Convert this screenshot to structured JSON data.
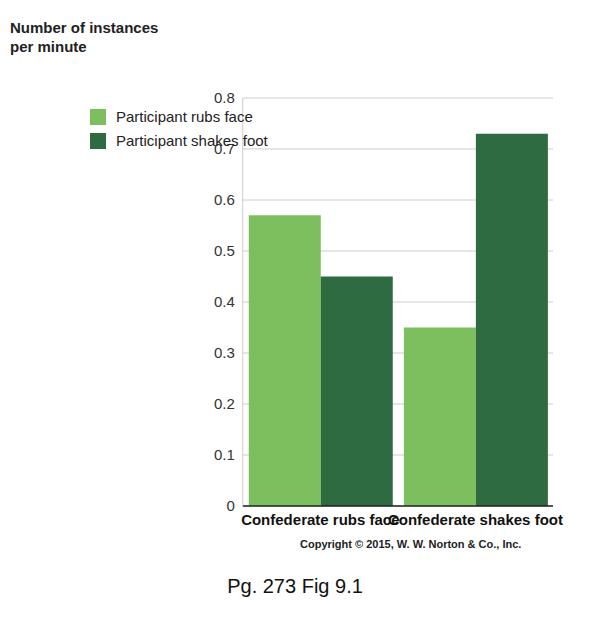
{
  "chart_data": {
    "type": "bar",
    "y_label": "Number of instances\nper minute",
    "categories": [
      "Confederate rubs face",
      "Confederate shakes foot"
    ],
    "series": [
      {
        "name": "Participant rubs face",
        "color": "#7dbf5e",
        "values": [
          0.57,
          0.35
        ]
      },
      {
        "name": "Participant shakes foot",
        "color": "#2f6b41",
        "values": [
          0.45,
          0.73
        ]
      }
    ],
    "ylim": [
      0,
      0.8
    ],
    "yticks": [
      0,
      0.1,
      0.2,
      0.3,
      0.4,
      0.5,
      0.6,
      0.7,
      0.8
    ],
    "grid": true,
    "legend": "upper left",
    "annotations": [
      "Copyright © 2015, W. W. Norton & Co., Inc.",
      "Pg. 273 Fig 9.1"
    ]
  }
}
